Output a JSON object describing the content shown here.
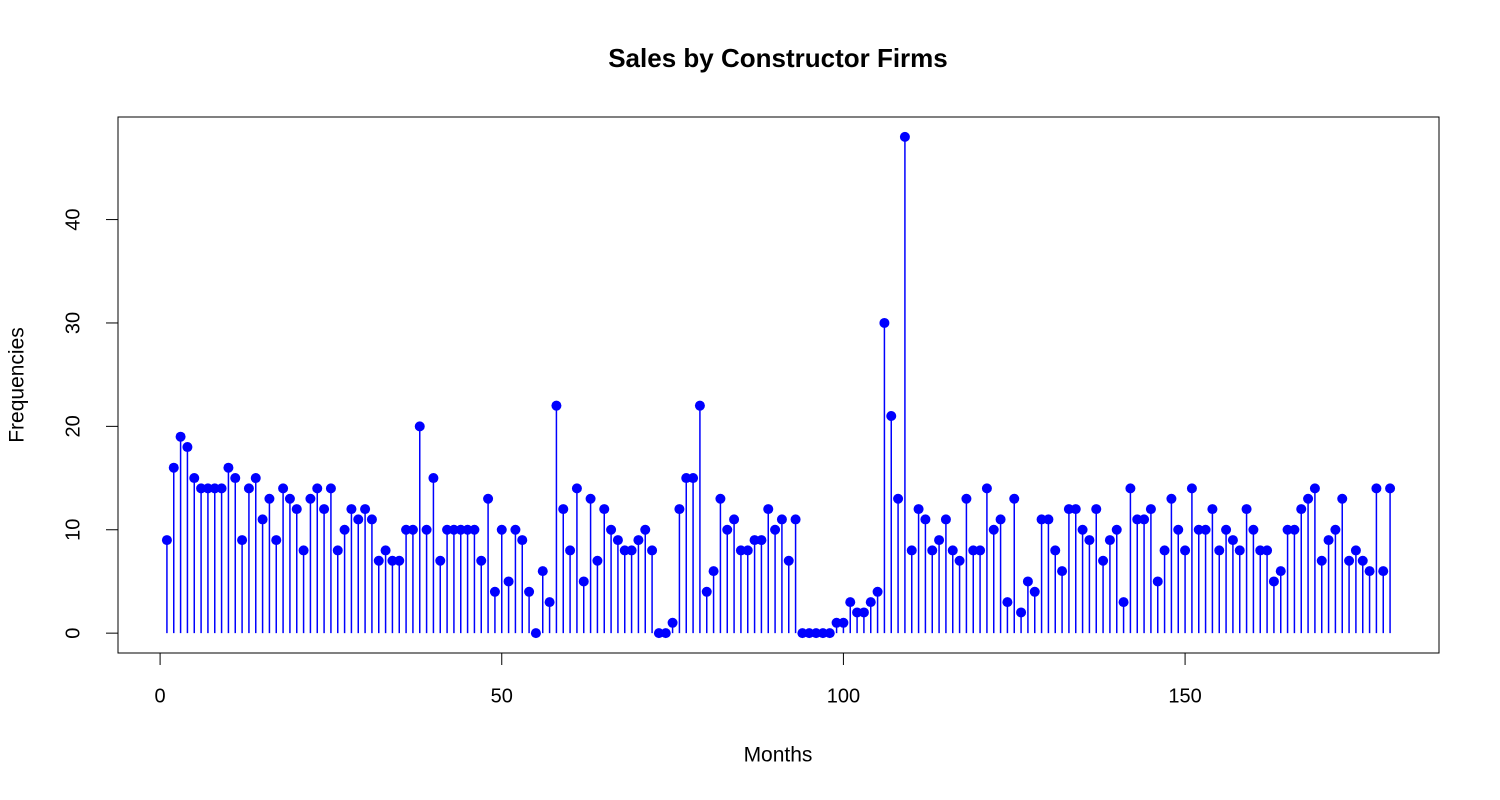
{
  "chart_data": {
    "type": "stem",
    "title": "Sales by Constructor Firms",
    "xlabel": "Months",
    "ylabel": "Frequencies",
    "color": "#0000ff",
    "x": [
      1,
      2,
      3,
      4,
      5,
      6,
      7,
      8,
      9,
      10,
      11,
      12,
      13,
      14,
      15,
      16,
      17,
      18,
      19,
      20,
      21,
      22,
      23,
      24,
      25,
      26,
      27,
      28,
      29,
      30,
      31,
      32,
      33,
      34,
      35,
      36,
      37,
      38,
      39,
      40,
      41,
      42,
      43,
      44,
      45,
      46,
      47,
      48,
      49,
      50,
      51,
      52,
      53,
      54,
      55,
      56,
      57,
      58,
      59,
      60,
      61,
      62,
      63,
      64,
      65,
      66,
      67,
      68,
      69,
      70,
      71,
      72,
      73,
      74,
      75,
      76,
      77,
      78,
      79,
      80,
      81,
      82,
      83,
      84,
      85,
      86,
      87,
      88,
      89,
      90,
      91,
      92,
      93,
      94,
      95,
      96,
      97,
      98,
      99,
      100,
      101,
      102,
      103,
      104,
      105,
      106,
      107,
      108,
      109,
      110,
      111,
      112,
      113,
      114,
      115,
      116,
      117,
      118,
      119,
      120,
      121,
      122,
      123,
      124,
      125,
      126,
      127,
      128,
      129,
      130,
      131,
      132,
      133,
      134,
      135,
      136,
      137,
      138,
      139,
      140,
      141,
      142,
      143,
      144,
      145,
      146,
      147,
      148,
      149,
      150,
      151,
      152,
      153,
      154,
      155,
      156,
      157,
      158,
      159,
      160,
      161,
      162,
      163,
      164,
      165,
      166,
      167,
      168,
      169,
      170,
      171,
      172,
      173,
      174,
      175,
      176,
      177,
      178,
      179,
      180
    ],
    "values": [
      9,
      16,
      19,
      18,
      15,
      14,
      14,
      14,
      14,
      16,
      15,
      9,
      14,
      15,
      11,
      13,
      9,
      14,
      13,
      12,
      8,
      13,
      14,
      12,
      14,
      8,
      10,
      12,
      11,
      12,
      11,
      7,
      8,
      7,
      7,
      10,
      10,
      20,
      10,
      15,
      7,
      10,
      10,
      10,
      10,
      10,
      7,
      13,
      4,
      10,
      5,
      10,
      9,
      4,
      0,
      6,
      3,
      22,
      12,
      8,
      14,
      5,
      13,
      7,
      12,
      10,
      9,
      8,
      8,
      9,
      10,
      8,
      0,
      0,
      1,
      12,
      15,
      15,
      22,
      4,
      6,
      13,
      10,
      11,
      8,
      8,
      9,
      9,
      12,
      10,
      11,
      7,
      11,
      0,
      0,
      0,
      0,
      0,
      1,
      1,
      3,
      2,
      2,
      3,
      4,
      30,
      21,
      13,
      48,
      8,
      12,
      11,
      8,
      9,
      11,
      8,
      7,
      13,
      8,
      8,
      14,
      10,
      11,
      3,
      13,
      2,
      5,
      4,
      11,
      11,
      8,
      6,
      12,
      12,
      10,
      9,
      12,
      7,
      9,
      10,
      3,
      14,
      11,
      11,
      12,
      5,
      8,
      13,
      10,
      8,
      14,
      10,
      10,
      12,
      8,
      10,
      9,
      8,
      12,
      10,
      8,
      8,
      5,
      6,
      10,
      10,
      12,
      13,
      14,
      7,
      9,
      10,
      13,
      7,
      8,
      7,
      6,
      14,
      6,
      14
    ],
    "xlim": [
      -6.16,
      187.16
    ],
    "ylim": [
      -1.92,
      49.92
    ],
    "xticks": [
      0,
      50,
      100,
      150
    ],
    "yticks": [
      0,
      10,
      20,
      30,
      40
    ]
  }
}
